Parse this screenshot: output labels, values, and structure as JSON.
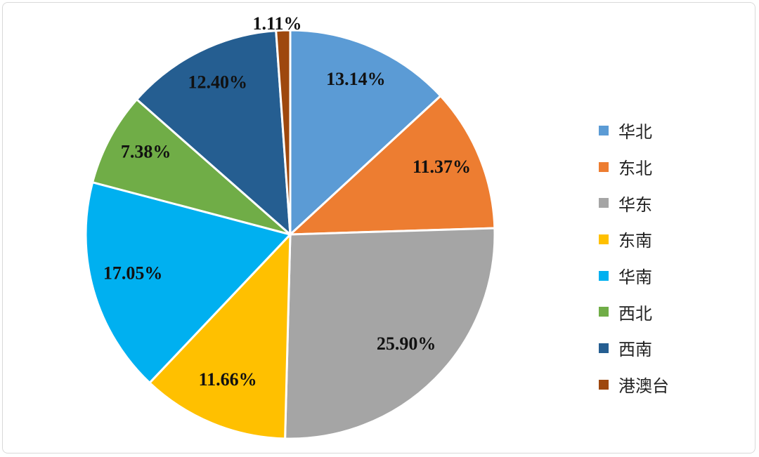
{
  "chart_data": {
    "type": "pie",
    "start": "top",
    "direction": "clockwise",
    "legend_position": "right",
    "slices": [
      {
        "name": "华北",
        "value": 13.14,
        "label": "13.14%",
        "color": "#5B9BD5"
      },
      {
        "name": "东北",
        "value": 11.37,
        "label": "11.37%",
        "color": "#ED7D31"
      },
      {
        "name": "华东",
        "value": 25.9,
        "label": "25.90%",
        "color": "#A5A5A5"
      },
      {
        "name": "东南",
        "value": 11.66,
        "label": "11.66%",
        "color": "#FFC000"
      },
      {
        "name": "华南",
        "value": 17.05,
        "label": "17.05%",
        "color": "#00B0F0"
      },
      {
        "name": "西北",
        "value": 7.38,
        "label": "7.38%",
        "color": "#70AD47"
      },
      {
        "name": "西南",
        "value": 12.4,
        "label": "12.40%",
        "color": "#255E91"
      },
      {
        "name": "港澳台",
        "value": 1.11,
        "label": "1.11%",
        "color": "#9E480E"
      }
    ]
  }
}
